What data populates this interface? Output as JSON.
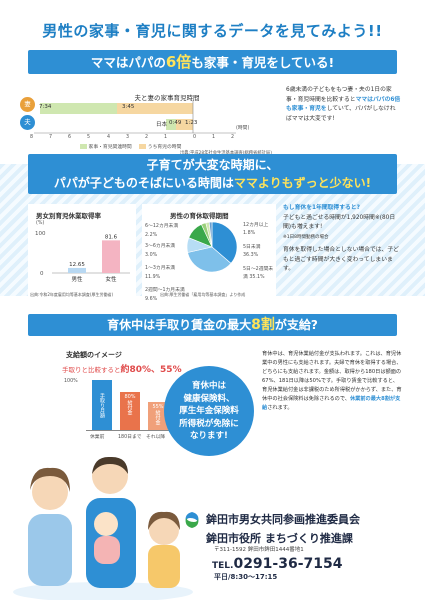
{
  "title": "男性の家事・育児に関するデータを見てみよう!!",
  "section1": {
    "banner_pre": "ママはパパの",
    "banner_hl": "6倍",
    "banner_post": "も家事・育児をしている!",
    "chart_title": "夫と妻の家事育児時間",
    "wife_label": "妻",
    "husband_label": "夫",
    "wife_total": "7:34",
    "wife_child": "3:45",
    "husband_total": "1:23",
    "husband_child": "0:49",
    "country": "日本",
    "axis_ticks": [
      "8",
      "7",
      "6",
      "5",
      "4",
      "3",
      "2",
      "1",
      "0",
      "1",
      "2"
    ],
    "unit": "(時間)",
    "legend": [
      "家事・育児関連時間",
      "うち育児の時間"
    ],
    "source": "出典:平成28年社会生活基本調査(総務省統計局)",
    "side_text_1": "6歳未満の子どもをもつ妻・夫の1日の家事・育児時間を比較すると",
    "side_text_em": "ママはパパの6倍も家事・育児を",
    "side_text_2": "していて、パパがしなければママは大変です!"
  },
  "section2": {
    "banner_line1": "子育てが大変な時期に、",
    "banner_line2_pre": "パパが子どものそばにいる時間は",
    "banner_line2_hl": "ママよりもずっと少ない!",
    "panel1_title": "男女別育児休業取得率",
    "panel1_unit": "(%)",
    "panel1_source": "出典:令和2年度雇用均等基本調査(厚生労働省)",
    "panel2_title": "男性の育休取得期間",
    "panel2_source": "出典:厚生労働省「雇用均等基本調査」より作成",
    "pie_labels_left": [
      "6〜12カ月未満 2.2%",
      "3〜6カ月未満 3.0%",
      "1〜3カ月未満 11.9%",
      "2週間〜1カ月未満 9.6%"
    ],
    "pie_labels_right": [
      "12カ月以上 1.8%",
      "5日未満 36.3%",
      "5日〜2週間未満 35.1%"
    ],
    "side_q": "もし育休を1年間取得すると?",
    "side_text_1": "子どもと過ごせる時間が1,920時間※(80日間)も増えます!",
    "side_note": "※1日8時間勤務の場合",
    "side_text_2": "育休を取得した場合としない場合では、子どもと過ごす時間が大きく変わってしまいます。"
  },
  "chart_data": [
    {
      "type": "bar",
      "title": "男女別育児休業取得率",
      "categories": [
        "男性",
        "女性"
      ],
      "values": [
        12.65,
        81.6
      ],
      "ylabel": "(%)",
      "ylim": [
        0,
        100
      ]
    },
    {
      "type": "pie",
      "title": "男性の育休取得期間",
      "categories": [
        "5日未満",
        "5日〜2週間未満",
        "2週間〜1カ月未満",
        "1〜3カ月未満",
        "3〜6カ月未満",
        "6〜12カ月未満",
        "12カ月以上"
      ],
      "values": [
        36.3,
        35.1,
        9.6,
        11.9,
        3.0,
        2.2,
        1.8
      ]
    }
  ],
  "section3": {
    "banner_pre": "育休中は手取り賃金の最大",
    "banner_hl": "8割",
    "banner_post": "が支給?",
    "image_title": "支給額のイメージ",
    "compare_pre": "手取りと比較すると",
    "compare_hl": "約80%、55%",
    "pct_100": "100%",
    "bar_labels": [
      "手取り月額",
      "給付金",
      "給付金"
    ],
    "bar_pct": [
      "",
      "80%",
      "55%"
    ],
    "bar_x": [
      "休業前",
      "180日まで",
      "それ以降"
    ],
    "circle_text": [
      "育休中は",
      "健康保険料、",
      "厚生年金保険料",
      "所得税が免除に",
      "なります!"
    ],
    "side_text": "育休中は、育児休業給付金が支払われます。これは、育児休業中の男性にも支給されます。夫婦で育休を取得する場合、どちらにも支給されます。金額は、取得から180日は額面の67%、181日以降は50%です。手取り賃金で比較すると、育児休業給付金は非課税のため所得税がかからず、また、育休中の社会保険料は免除されるので、",
    "side_em": "休業前の最大8割が支給",
    "side_end": "されます。"
  },
  "footer": {
    "org1": "鉾田市男女共同参画推進委員会",
    "org2": "鉾田市役所 まちづくり推進課",
    "address": "〒311-1592 鉾田市鉾田1444番地1",
    "tel_label": "TEL.",
    "tel": "0291-36-7154",
    "hours": "平日/8:30〜17:15"
  }
}
